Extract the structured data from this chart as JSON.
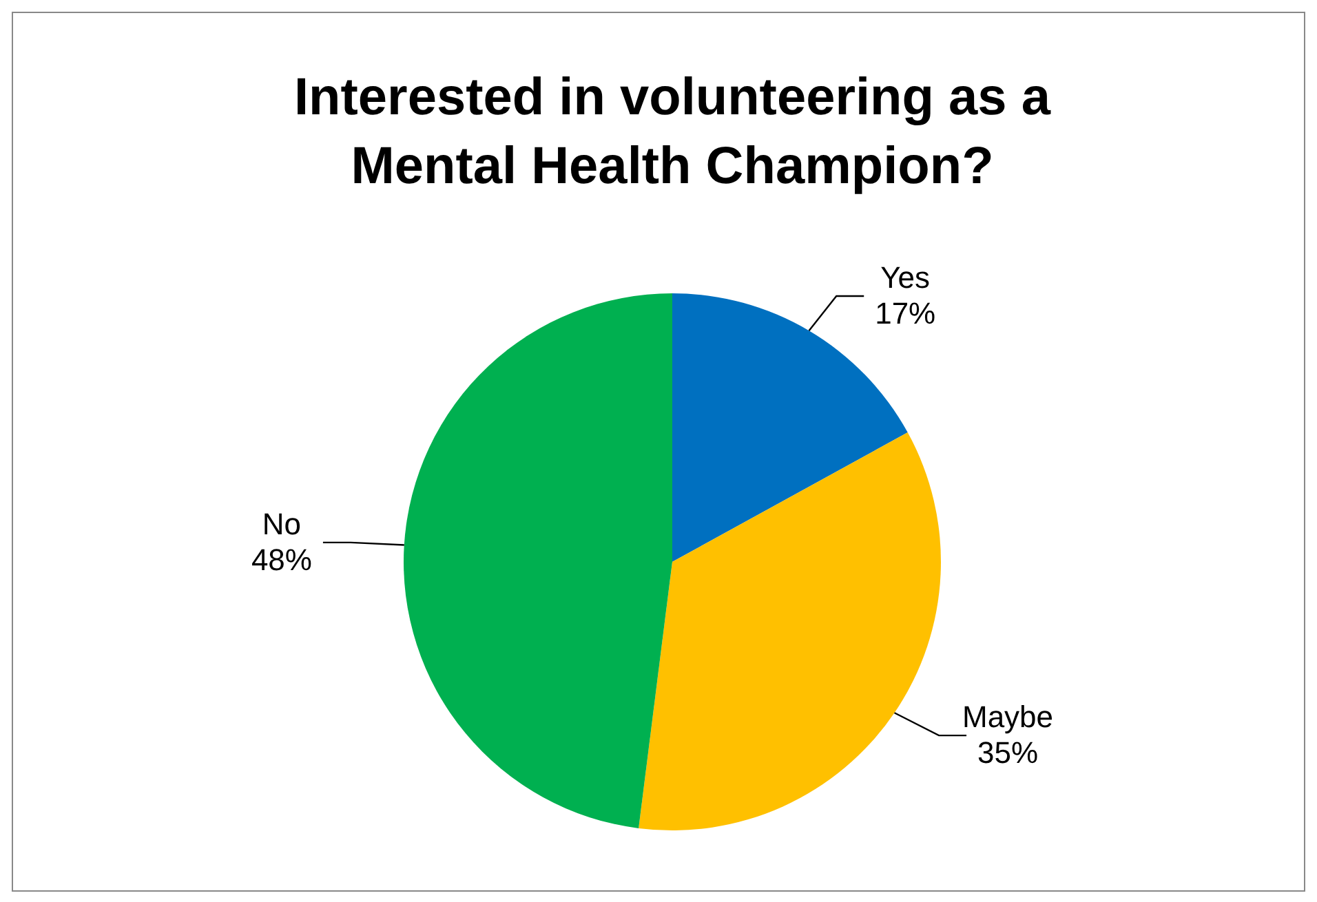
{
  "chart_data": {
    "type": "pie",
    "title": "Interested in volunteering as a Mental Health Champion?",
    "categories": [
      "Yes",
      "Maybe",
      "No"
    ],
    "values": [
      17,
      35,
      48
    ],
    "value_labels": [
      "17%",
      "35%",
      "48%"
    ],
    "colors": [
      "#0070c0",
      "#ffc000",
      "#00b050"
    ]
  }
}
